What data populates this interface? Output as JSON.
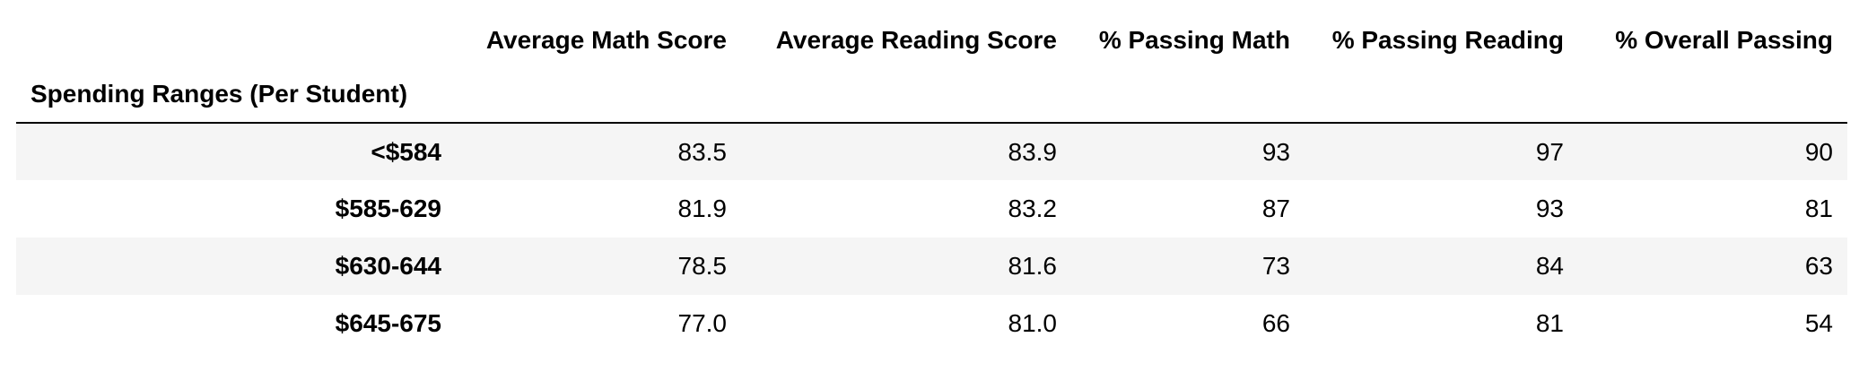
{
  "table": {
    "index_name": "Spending Ranges (Per Student)",
    "columns": [
      "Average Math Score",
      "Average Reading Score",
      "% Passing Math",
      "% Passing Reading",
      "% Overall Passing"
    ],
    "rows": [
      {
        "label": "<$584",
        "values": [
          "83.5",
          "83.9",
          "93",
          "97",
          "90"
        ]
      },
      {
        "label": "$585-629",
        "values": [
          "81.9",
          "83.2",
          "87",
          "93",
          "81"
        ]
      },
      {
        "label": "$630-644",
        "values": [
          "78.5",
          "81.6",
          "73",
          "84",
          "63"
        ]
      },
      {
        "label": "$645-675",
        "values": [
          "77.0",
          "81.0",
          "66",
          "81",
          "54"
        ]
      }
    ],
    "stripe_color": "#f5f5f5"
  }
}
